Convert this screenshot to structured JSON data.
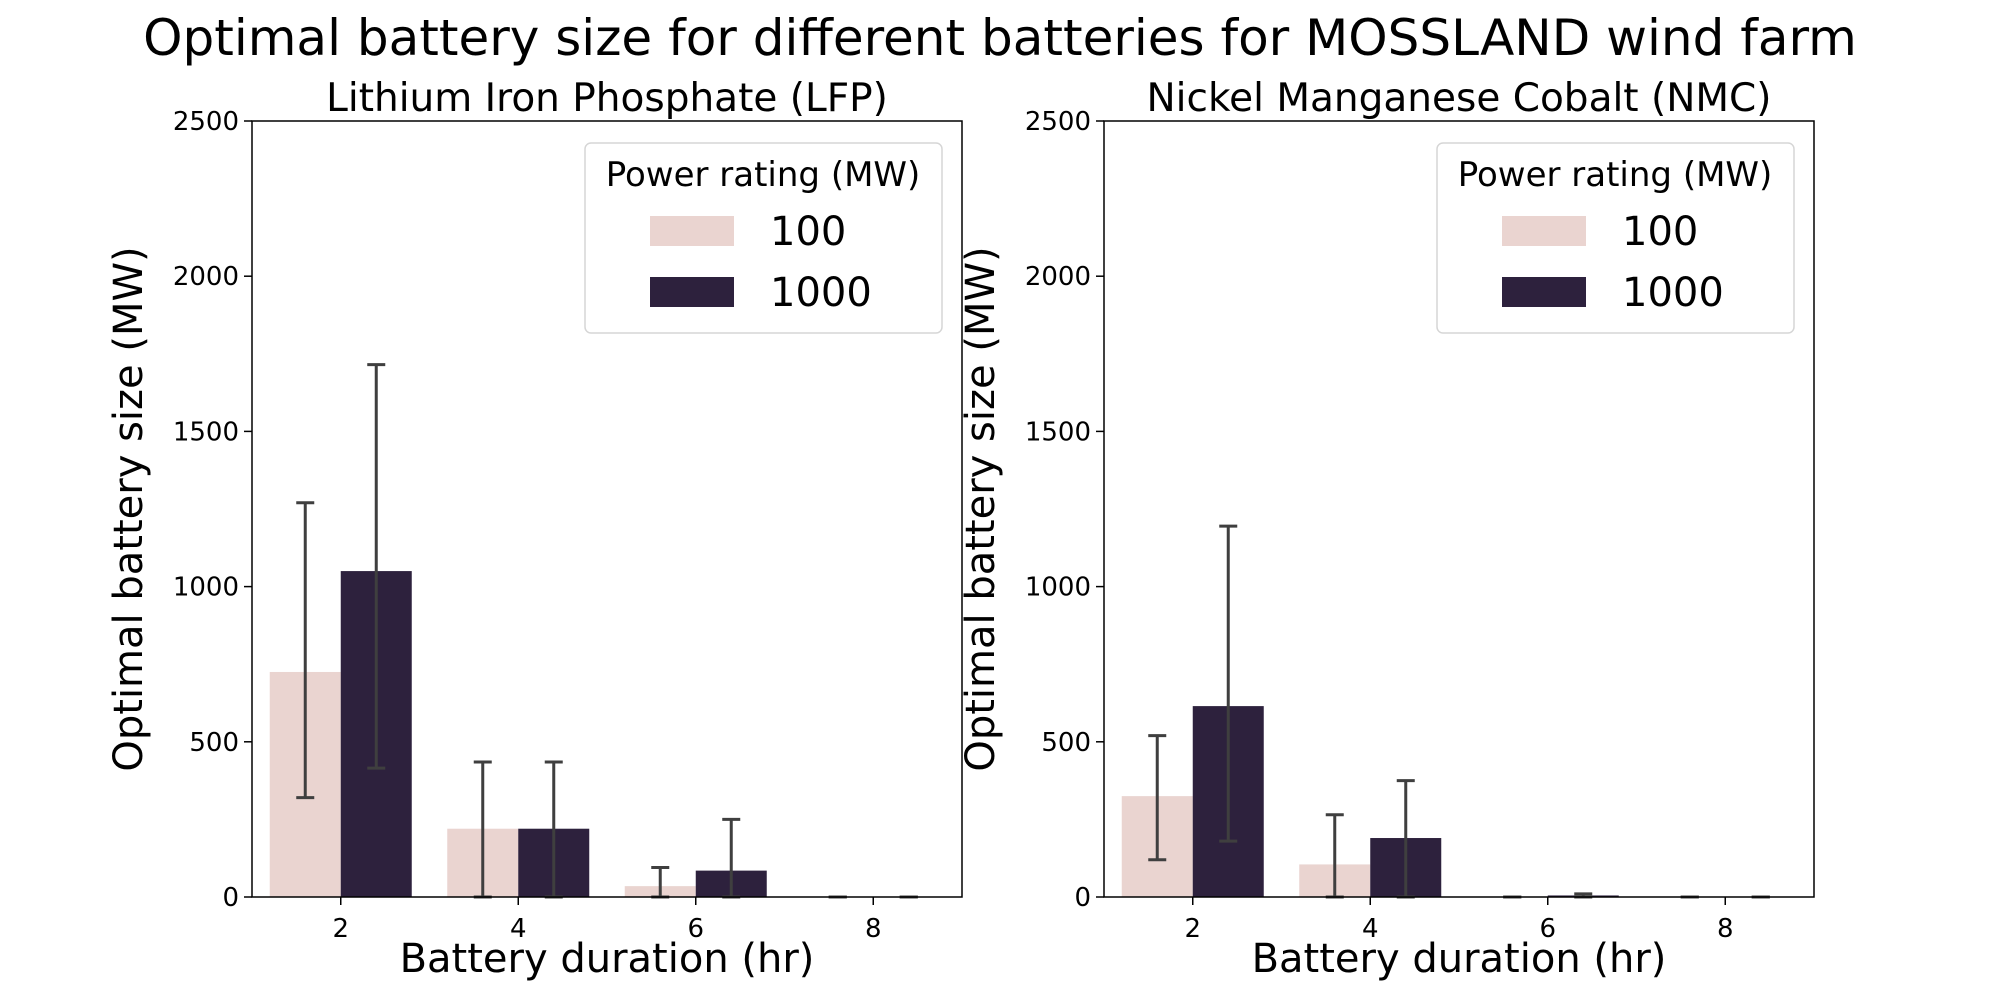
{
  "figure": {
    "title": "Optimal battery size for different batteries for MOSSLAND wind farm",
    "colors": {
      "series_light": "#ead4d0",
      "series_dark": "#2d213d",
      "error_bar": "#3f3f3f",
      "axis": "#000000",
      "background": "#ffffff"
    }
  },
  "chart_data": [
    {
      "type": "bar",
      "title": "Lithium Iron Phosphate (LFP)",
      "xlabel": "Battery duration (hr)",
      "ylabel": "Optimal battery size (MW)",
      "categories": [
        "2",
        "4",
        "6",
        "8"
      ],
      "ylim": [
        0,
        2500
      ],
      "yticks": [
        "0",
        "500",
        "1000",
        "1500",
        "2000",
        "2500"
      ],
      "legend": {
        "title": "Power rating (MW)",
        "location": "upper right"
      },
      "series": [
        {
          "name": "100",
          "values": [
            725,
            220,
            35,
            0
          ],
          "error_low": [
            320,
            0,
            0,
            0
          ],
          "error_high": [
            1270,
            435,
            95,
            0
          ]
        },
        {
          "name": "1000",
          "values": [
            1050,
            220,
            85,
            0
          ],
          "error_low": [
            415,
            0,
            0,
            0
          ],
          "error_high": [
            1715,
            435,
            250,
            0
          ]
        }
      ]
    },
    {
      "type": "bar",
      "title": "Nickel Manganese Cobalt (NMC)",
      "xlabel": "Battery duration (hr)",
      "ylabel": "Optimal battery size (MW)",
      "categories": [
        "2",
        "4",
        "6",
        "8"
      ],
      "ylim": [
        0,
        2500
      ],
      "yticks": [
        "0",
        "500",
        "1000",
        "1500",
        "2000",
        "2500"
      ],
      "legend": {
        "title": "Power rating (MW)",
        "location": "upper right"
      },
      "series": [
        {
          "name": "100",
          "values": [
            325,
            105,
            0,
            0
          ],
          "error_low": [
            120,
            0,
            0,
            0
          ],
          "error_high": [
            520,
            265,
            0,
            0
          ]
        },
        {
          "name": "1000",
          "values": [
            615,
            190,
            5,
            0
          ],
          "error_low": [
            180,
            0,
            0,
            0
          ],
          "error_high": [
            1195,
            375,
            10,
            0
          ]
        }
      ]
    }
  ]
}
